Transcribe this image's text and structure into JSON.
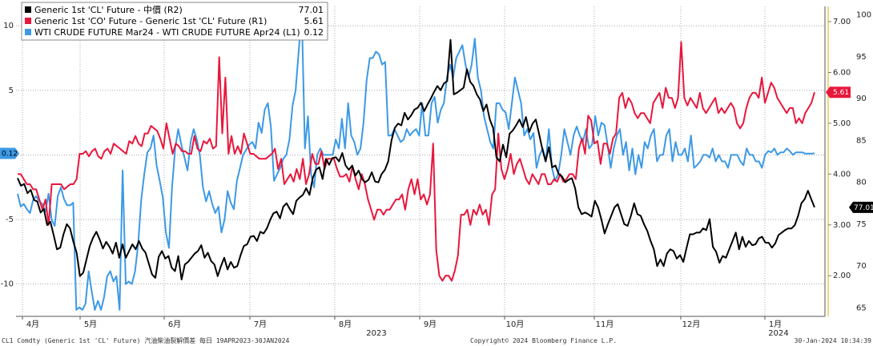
{
  "chart_data": {
    "type": "line",
    "legend": {
      "placement": "top-left",
      "entries": [
        {
          "label": "Generic 1st 'CL' Future - 中價 (R2)",
          "value": "77.01",
          "color": "#000000"
        },
        {
          "label": "Generic 1st 'CO' Future - Generic 1st 'CL' Future (R1)",
          "value": "5.61",
          "color": "#e8173c"
        },
        {
          "label": "WTI CRUDE FUTURE Mar24 - WTI CRUDE FUTURE Apr24 (L1)",
          "value": "0.12",
          "color": "#3c99e6"
        }
      ]
    },
    "x_tick_labels": [
      "4月",
      "5月",
      "6月",
      "7月",
      "8月",
      "9月",
      "10月",
      "11月",
      "12月",
      "1月"
    ],
    "x_year_labels": [
      "2023",
      "2024"
    ],
    "axes": {
      "L1": {
        "ticks": [
          "10",
          "5",
          "0",
          "-5",
          "-10"
        ],
        "range": [
          -12.5,
          11.5
        ]
      },
      "R1": {
        "ticks": [
          "7.00",
          "6.00",
          "5.00",
          "4.00",
          "3.00",
          "2.00"
        ],
        "range": [
          1.2,
          7.3
        ]
      },
      "R2": {
        "ticks": [
          "100",
          "95",
          "90",
          "85",
          "80",
          "75",
          "70",
          "65"
        ],
        "range": [
          64,
          101
        ]
      }
    },
    "grid": true,
    "last_value_tags": {
      "L1": "0.12",
      "R1": "5.61",
      "R2": "77.01"
    },
    "series": [
      {
        "key": "spread_wti",
        "axis": "L1",
        "color": "#3c99e6",
        "values": [
          -3.0,
          -4.0,
          -3.8,
          -4.2,
          -4.5,
          -3.5,
          -3.2,
          -3.6,
          -3.8,
          -4.4,
          -3.0,
          -5.0,
          -5.5,
          -3.2,
          -2.5,
          -3.4,
          -3.9,
          -3.9,
          -3.7,
          -12.0,
          -11.8,
          -12.0,
          -11.5,
          -9.0,
          -10.6,
          -12.0,
          -11.3,
          -12.0,
          -11.0,
          -9.4,
          -9.0,
          -9.8,
          -9.4,
          -12.0,
          -1.2,
          -10.0,
          -9.8,
          -10.0,
          -9.0,
          -7.0,
          -3.5,
          -1.5,
          0.2,
          0.5,
          1.5,
          -0.8,
          -2.0,
          -3.3,
          -6.0,
          -7.2,
          -2.5,
          0.5,
          2.0,
          0.8,
          -0.2,
          -1.2,
          1.0,
          2.0,
          1.2,
          0.0,
          -2.5,
          -3.6,
          -2.8,
          -3.8,
          -4.5,
          -4.0,
          -6.0,
          -5.0,
          -2.8,
          -3.7,
          -4.2,
          -2.0,
          -1.0,
          0.0,
          0.4,
          0.8,
          1.0,
          0.5,
          2.5,
          1.7,
          3.5,
          4.0,
          2.2,
          -2.0,
          -1.5,
          -1.0,
          -0.3,
          0.0,
          1.2,
          3.8,
          5.0,
          8.0,
          11.0,
          0.5,
          3.0,
          -1.5,
          -2.5,
          0.0,
          0.5,
          0.0,
          0.0,
          0.0,
          0.0,
          1.2,
          0.5,
          2.8,
          0.5,
          4.0,
          1.5,
          1.0,
          0.0,
          0.5,
          2.5,
          5.8,
          7.5,
          7.5,
          8.0,
          7.8,
          7.0,
          7.2,
          1.5,
          1.5,
          2.0,
          1.5,
          1.0,
          1.2,
          2.0,
          1.5,
          1.8,
          2.0,
          1.5,
          4.0,
          1.5,
          1.5,
          4.0,
          4.5,
          2.5,
          3.5,
          4.0,
          6.0,
          7.0,
          6.0,
          7.5,
          8.0,
          8.5,
          7.0,
          6.0,
          7.0,
          9.0,
          6.0,
          5.0,
          3.0,
          2.0,
          1.0,
          0.5,
          4.0,
          4.0,
          3.5,
          3.3,
          2.0,
          4.0,
          6.0,
          5.0,
          4.0,
          1.5,
          2.0,
          1.2,
          1.7,
          -1.0,
          0.0,
          0.5,
          -0.5,
          2.0,
          -1.0,
          -2.0,
          -1.5,
          0.0,
          2.0,
          1.0,
          0.0,
          1.5,
          2.2,
          1.5,
          1.0,
          2.0,
          0.5,
          0.8,
          3.0,
          1.5,
          2.5,
          2.3,
          0.8,
          -1.0,
          0.5,
          1.5,
          2.0,
          0.0,
          1.0,
          -1.2,
          0.5,
          -1.5,
          0.0,
          -1.0,
          1.0,
          0.5,
          1.5,
          2.0,
          -0.5,
          0.0,
          0.0,
          1.5,
          2.0,
          -0.5,
          1.0,
          0.0,
          0.0,
          0.5,
          -0.5,
          1.5,
          -1.0,
          -0.8,
          -0.5,
          0.0,
          0.0,
          -0.2,
          0.5,
          -0.5,
          0.0,
          -0.5,
          -0.5,
          -1.0,
          0.0,
          0.0,
          0.0,
          -0.5,
          -0.8,
          0.5,
          0.0,
          0.0,
          -0.5,
          -0.5,
          -1.0,
          0.0,
          0.3,
          0.2,
          0.5,
          0.0,
          0.2,
          0.2,
          0.5,
          0.3,
          0.0,
          0.2,
          0.2,
          0.2,
          0.1,
          0.1,
          0.1,
          0.12
        ]
      },
      {
        "key": "spread_co_cl",
        "axis": "R1",
        "color": "#e8173c",
        "values": [
          4.0,
          4.0,
          3.9,
          3.8,
          3.8,
          3.7,
          3.7,
          3.5,
          3.3,
          3.5,
          3.0,
          3.8,
          3.8,
          3.8,
          3.8,
          3.7,
          3.75,
          3.8,
          3.8,
          3.9,
          4.4,
          4.4,
          4.45,
          4.35,
          4.45,
          4.5,
          4.35,
          4.3,
          4.45,
          4.5,
          4.4,
          4.6,
          4.55,
          4.5,
          4.45,
          4.4,
          4.65,
          4.6,
          4.75,
          4.6,
          4.55,
          4.8,
          4.8,
          4.95,
          4.9,
          4.85,
          4.7,
          4.5,
          5.0,
          4.7,
          4.4,
          4.6,
          4.55,
          4.45,
          4.45,
          4.4,
          4.4,
          4.75,
          4.5,
          4.45,
          4.65,
          4.6,
          4.7,
          4.5,
          4.55,
          6.3,
          4.8,
          5.9,
          4.4,
          4.75,
          4.4,
          4.55,
          4.4,
          4.8,
          4.6,
          4.4,
          4.4,
          4.35,
          4.3,
          4.3,
          4.3,
          4.35,
          4.4,
          4.5,
          4.1,
          4.3,
          3.8,
          3.9,
          4.0,
          3.85,
          4.1,
          3.9,
          4.3,
          3.8,
          4.0,
          4.4,
          4.2,
          4.2,
          4.45,
          4.1,
          4.3,
          4.3,
          4.3,
          4.1,
          3.95,
          3.95,
          4.0,
          3.85,
          4.15,
          3.9,
          3.7,
          4.0,
          3.8,
          3.5,
          3.3,
          3.1,
          3.3,
          3.3,
          3.2,
          3.3,
          3.3,
          3.4,
          3.5,
          3.5,
          3.6,
          3.3,
          3.7,
          3.9,
          3.6,
          3.9,
          3.5,
          3.6,
          3.4,
          3.6,
          4.6,
          2.5,
          2.0,
          1.9,
          2.0,
          2.0,
          1.9,
          2.1,
          2.4,
          3.2,
          3.2,
          3.3,
          3.0,
          3.3,
          3.2,
          3.4,
          3.2,
          3.3,
          3.0,
          3.6,
          3.7,
          4.8,
          4.1,
          3.9,
          4.1,
          4.4,
          4.0,
          4.2,
          4.3,
          4.1,
          3.9,
          3.8,
          4.0,
          3.9,
          3.8,
          4.0,
          4.0,
          3.8,
          3.8,
          3.9,
          3.85,
          4.0,
          3.85,
          3.9,
          4.0,
          4.0,
          3.9,
          4.5,
          4.7,
          4.4,
          5.15,
          5.05,
          4.6,
          4.65,
          4.2,
          4.6,
          4.6,
          4.4,
          4.7,
          4.8,
          5.5,
          5.6,
          5.3,
          5.5,
          5.4,
          5.2,
          5.1,
          5.2,
          5.2,
          5.1,
          5.0,
          5.4,
          5.5,
          5.6,
          5.3,
          5.7,
          5.5,
          5.5,
          5.3,
          5.5,
          6.6,
          5.5,
          5.35,
          5.5,
          5.4,
          5.3,
          5.6,
          5.3,
          5.2,
          5.3,
          5.4,
          5.5,
          5.2,
          5.3,
          5.2,
          5.3,
          5.4,
          5.3,
          5.0,
          4.9,
          5.0,
          5.3,
          5.5,
          5.6,
          5.6,
          5.5,
          5.9,
          5.4,
          5.6,
          5.8,
          5.7,
          5.5,
          5.4,
          5.3,
          5.2,
          5.3,
          5.3,
          5.0,
          5.1,
          5.0,
          5.2,
          5.3,
          5.4,
          5.61
        ]
      },
      {
        "key": "cl_front",
        "axis": "R2",
        "color": "#000000",
        "values": [
          80.5,
          79.6,
          79.8,
          78.7,
          79.1,
          77.9,
          77.7,
          76.4,
          76.8,
          74.9,
          75.3,
          73.7,
          72.0,
          72.2,
          73.8,
          75.0,
          74.5,
          72.9,
          71.6,
          68.8,
          69.2,
          70.8,
          72.4,
          73.4,
          74.1,
          73.2,
          72.1,
          72.9,
          72.3,
          71.5,
          72.8,
          71.0,
          72.6,
          71.0,
          71.8,
          72.6,
          72.0,
          73.0,
          72.1,
          71.6,
          70.3,
          69.0,
          68.6,
          71.1,
          71.8,
          70.9,
          71.2,
          69.8,
          69.4,
          71.2,
          68.4,
          70.2,
          70.5,
          71.0,
          71.5,
          71.8,
          72.5,
          71.0,
          71.6,
          70.6,
          70.2,
          68.8,
          70.0,
          71.0,
          69.6,
          70.5,
          69.8,
          70.0,
          71.3,
          72.4,
          72.6,
          73.5,
          73.6,
          73.0,
          74.1,
          73.9,
          74.5,
          75.5,
          76.3,
          76.5,
          75.7,
          77.1,
          77.5,
          76.8,
          76.2,
          77.8,
          78.2,
          78.5,
          79.3,
          78.5,
          80.5,
          81.5,
          81.8,
          80.4,
          82.8,
          82.1,
          82.9,
          83.0,
          82.5,
          83.5,
          82.0,
          81.5,
          82.0,
          80.8,
          81.4,
          80.4,
          80.0,
          80.3,
          81.2,
          80.1,
          80.0,
          81.0,
          81.5,
          82.5,
          85.0,
          86.5,
          87.0,
          86.8,
          88.3,
          87.5,
          88.0,
          88.7,
          88.9,
          89.5,
          88.5,
          89.3,
          90.0,
          90.8,
          91.5,
          91.0,
          91.8,
          92.1,
          97.0,
          90.5,
          90.7,
          91.0,
          91.3,
          93.5,
          92.0,
          91.5,
          90.5,
          89.9,
          88.5,
          89.3,
          87.5,
          86.5,
          83.0,
          82.5,
          84.5,
          83.0,
          85.8,
          86.2,
          86.8,
          87.5,
          86.6,
          87.8,
          86.0,
          87.0,
          87.5,
          85.8,
          84.0,
          82.5,
          84.2,
          81.8,
          82.0,
          81.0,
          80.7,
          80.0,
          80.3,
          80.5,
          79.3,
          77.0,
          76.2,
          76.4,
          76.2,
          75.9,
          77.8,
          77.0,
          75.6,
          73.9,
          75.0,
          76.0,
          77.0,
          77.4,
          76.2,
          75.0,
          74.8,
          76.0,
          77.5,
          76.2,
          76.0,
          75.0,
          74.2,
          73.0,
          72.0,
          70.0,
          70.8,
          70.0,
          71.5,
          72.0,
          71.8,
          70.9,
          71.3,
          70.5,
          72.2,
          73.8,
          73.8,
          74.0,
          74.0,
          74.5,
          74.3,
          75.6,
          72.3,
          71.7,
          70.4,
          71.2,
          71.0,
          72.0,
          73.0,
          74.0,
          72.0,
          73.5,
          72.3,
          73.0,
          72.5,
          72.6,
          73.3,
          73.5,
          72.8,
          72.8,
          72.2,
          72.7,
          73.7,
          74.0,
          74.3,
          74.5,
          74.5,
          74.9,
          76.0,
          77.5,
          78.0,
          79.0,
          78.0,
          77.01
        ]
      }
    ]
  },
  "footer": {
    "left": "CL1 Comdty (Generic 1st 'CL' Future) 汽油柴油裂解價差  每日 19APR2023-30JAN2024",
    "center": "Copyright© 2024 Bloomberg Finance L.P.",
    "right": "30-Jan-2024 10:34:39"
  }
}
